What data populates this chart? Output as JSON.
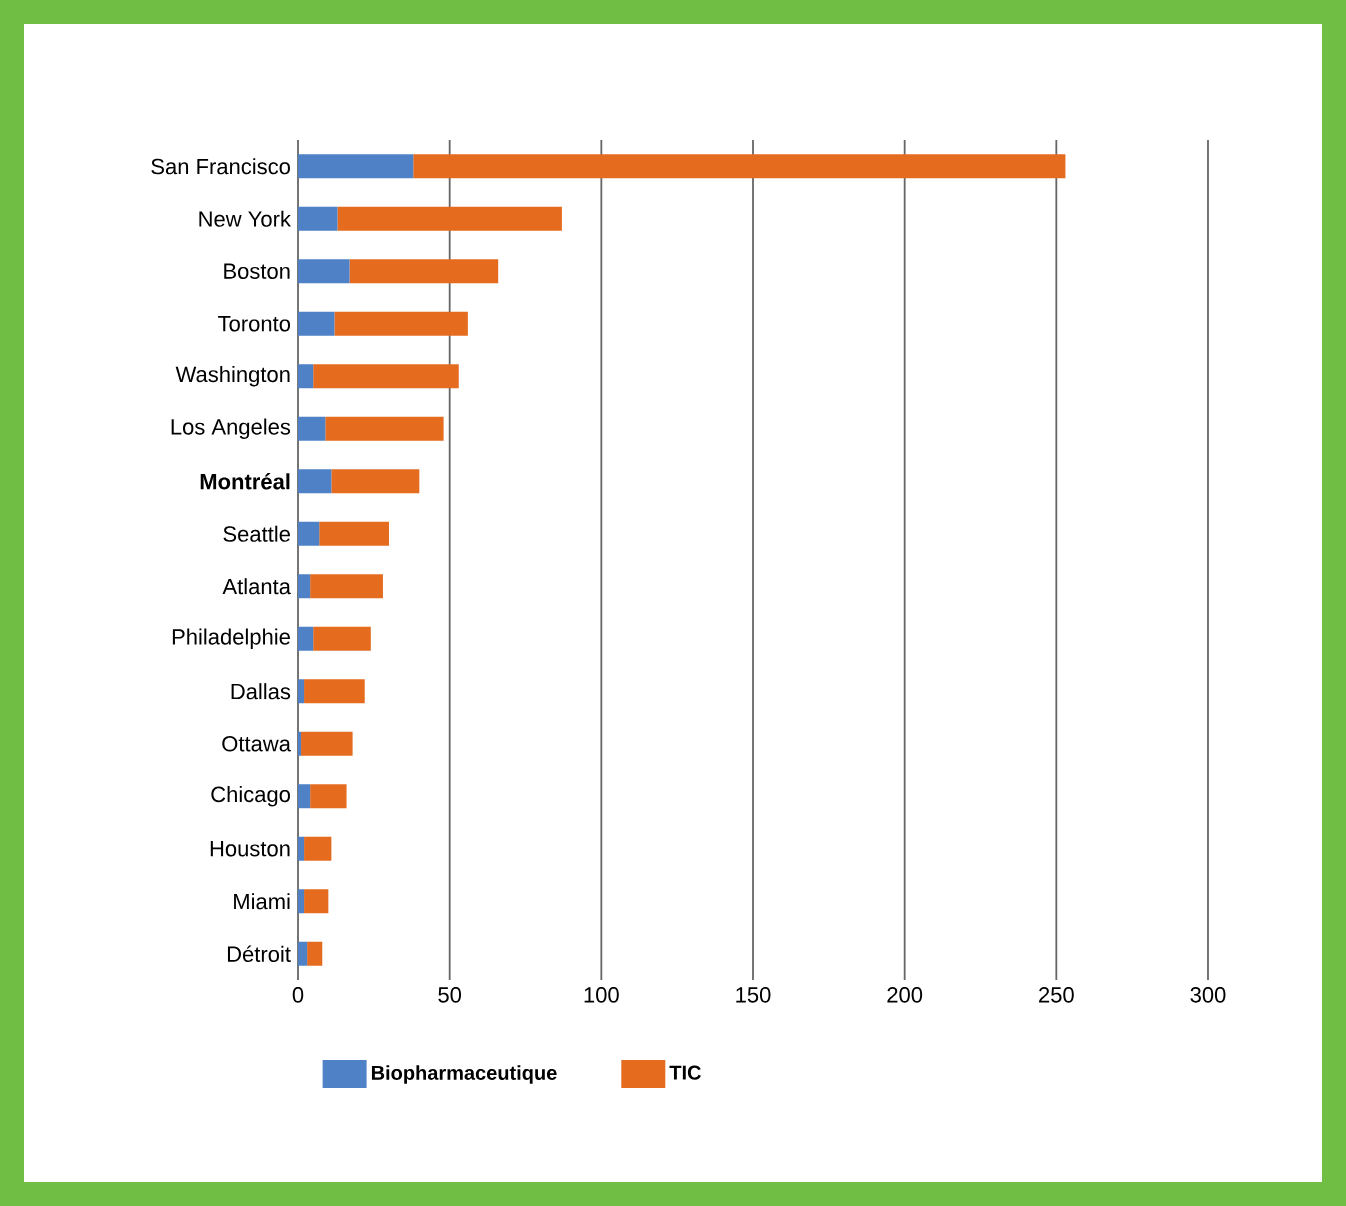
{
  "chart_data": {
    "type": "bar",
    "orientation": "horizontal",
    "stacked": true,
    "categories": [
      "San Francisco",
      "New York",
      "Boston",
      "Toronto",
      "Washington",
      "Los Angeles",
      "**Montréal**",
      "Seattle",
      "Atlanta",
      "Philadelphie",
      "Dallas",
      "Ottawa",
      "Chicago",
      "Houston",
      "Miami",
      "Détroit"
    ],
    "series": [
      {
        "name": "Biopharmaceutique",
        "color": "#4f81c7",
        "values": [
          38,
          13,
          17,
          12,
          5,
          9,
          11,
          7,
          4,
          5,
          2,
          1,
          4,
          2,
          2,
          3
        ]
      },
      {
        "name": "TIC",
        "color": "#e56b1f",
        "values": [
          215,
          74,
          49,
          44,
          48,
          39,
          29,
          23,
          24,
          19,
          20,
          17,
          12,
          9,
          8,
          5
        ]
      }
    ],
    "xlim": [
      0,
      300
    ],
    "xticks": [
      0,
      50,
      100,
      150,
      200,
      250,
      300
    ],
    "grid": "x",
    "legend": "bottom"
  }
}
